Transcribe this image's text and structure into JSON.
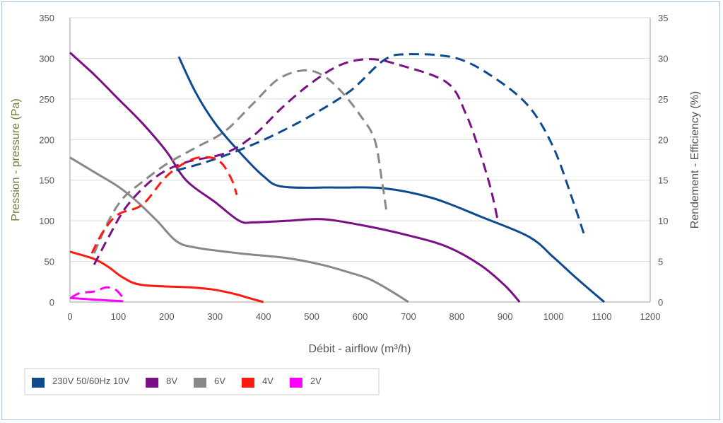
{
  "chart_data": {
    "type": "line",
    "xlabel": "Débit - airflow (m³/h)",
    "ylabel": "Pression - pressure (Pa)",
    "y2label": "Rendement - Efficiency (%)",
    "xlim": [
      0,
      1200
    ],
    "ylim": [
      0,
      350
    ],
    "y2lim": [
      0,
      35
    ],
    "x_ticks": [
      "0",
      "100",
      "200",
      "300",
      "400",
      "500",
      "600",
      "700",
      "800",
      "900",
      "1000",
      "1100",
      "1200"
    ],
    "y_ticks": [
      "0",
      "50",
      "100",
      "150",
      "200",
      "250",
      "300",
      "350"
    ],
    "y2_ticks": [
      "0",
      "5",
      "10",
      "15",
      "20",
      "25",
      "30",
      "35"
    ],
    "grid": true,
    "legend_position": "bottom-left",
    "series": [
      {
        "name": "230V 50/60Hz 10V",
        "color": "#0d4a8f",
        "pressure": [
          [
            225,
            302
          ],
          [
            260,
            258
          ],
          [
            300,
            220
          ],
          [
            350,
            185
          ],
          [
            400,
            155
          ],
          [
            440,
            142
          ],
          [
            550,
            141
          ],
          [
            650,
            140
          ],
          [
            750,
            128
          ],
          [
            850,
            105
          ],
          [
            950,
            80
          ],
          [
            1000,
            55
          ],
          [
            1050,
            28
          ],
          [
            1105,
            0
          ]
        ],
        "efficiency": [
          [
            220,
            16.2
          ],
          [
            280,
            17.2
          ],
          [
            350,
            18.7
          ],
          [
            420,
            20.5
          ],
          [
            500,
            23.0
          ],
          [
            580,
            26.0
          ],
          [
            650,
            29.8
          ],
          [
            700,
            30.5
          ],
          [
            800,
            30.0
          ],
          [
            880,
            27.5
          ],
          [
            950,
            24.0
          ],
          [
            1000,
            19.0
          ],
          [
            1040,
            12.5
          ],
          [
            1065,
            8.0
          ]
        ]
      },
      {
        "name": "8V",
        "color": "#7b0f86",
        "pressure": [
          [
            0,
            307
          ],
          [
            50,
            280
          ],
          [
            100,
            250
          ],
          [
            150,
            220
          ],
          [
            200,
            185
          ],
          [
            240,
            150
          ],
          [
            300,
            123
          ],
          [
            350,
            100
          ],
          [
            380,
            98
          ],
          [
            450,
            100
          ],
          [
            520,
            102
          ],
          [
            600,
            95
          ],
          [
            700,
            82
          ],
          [
            780,
            68
          ],
          [
            850,
            45
          ],
          [
            900,
            20
          ],
          [
            930,
            0
          ]
        ],
        "efficiency": [
          [
            50,
            4.6
          ],
          [
            80,
            8.0
          ],
          [
            120,
            12.0
          ],
          [
            180,
            15.5
          ],
          [
            240,
            17.2
          ],
          [
            320,
            18.3
          ],
          [
            380,
            20.5
          ],
          [
            440,
            24.0
          ],
          [
            500,
            27.0
          ],
          [
            560,
            29.2
          ],
          [
            620,
            29.9
          ],
          [
            680,
            29.2
          ],
          [
            780,
            27.0
          ],
          [
            820,
            23.0
          ],
          [
            850,
            18.0
          ],
          [
            870,
            14.0
          ],
          [
            885,
            10.0
          ]
        ]
      },
      {
        "name": "6V",
        "color": "#888888",
        "pressure": [
          [
            0,
            178
          ],
          [
            50,
            160
          ],
          [
            100,
            142
          ],
          [
            140,
            123
          ],
          [
            180,
            100
          ],
          [
            220,
            75
          ],
          [
            260,
            67
          ],
          [
            350,
            60
          ],
          [
            450,
            54
          ],
          [
            520,
            46
          ],
          [
            580,
            36
          ],
          [
            620,
            28
          ],
          [
            660,
            15
          ],
          [
            700,
            0
          ]
        ],
        "efficiency": [
          [
            50,
            6.0
          ],
          [
            80,
            10.0
          ],
          [
            110,
            12.8
          ],
          [
            150,
            14.8
          ],
          [
            200,
            17.0
          ],
          [
            260,
            19.0
          ],
          [
            320,
            21.0
          ],
          [
            380,
            24.5
          ],
          [
            430,
            27.4
          ],
          [
            480,
            28.5
          ],
          [
            520,
            28.0
          ],
          [
            560,
            26.0
          ],
          [
            600,
            23.0
          ],
          [
            630,
            20.0
          ],
          [
            645,
            15.0
          ],
          [
            655,
            11.0
          ]
        ]
      },
      {
        "name": "4V",
        "color": "#ff1a0f",
        "pressure": [
          [
            0,
            62
          ],
          [
            50,
            53
          ],
          [
            80,
            43
          ],
          [
            110,
            30
          ],
          [
            150,
            21
          ],
          [
            250,
            18
          ],
          [
            300,
            15
          ],
          [
            340,
            10
          ],
          [
            370,
            5
          ],
          [
            400,
            0
          ]
        ],
        "efficiency": [
          [
            45,
            6.0
          ],
          [
            70,
            8.8
          ],
          [
            100,
            10.8
          ],
          [
            150,
            12.0
          ],
          [
            200,
            15.5
          ],
          [
            250,
            17.5
          ],
          [
            290,
            17.8
          ],
          [
            315,
            17.0
          ],
          [
            335,
            15.0
          ],
          [
            345,
            13.2
          ]
        ]
      },
      {
        "name": "2V",
        "color": "#ff00ff",
        "pressure": [
          [
            0,
            5
          ],
          [
            25,
            4
          ],
          [
            50,
            3
          ],
          [
            80,
            2
          ],
          [
            110,
            1
          ]
        ],
        "efficiency": [
          [
            2,
            0.5
          ],
          [
            20,
            1.1
          ],
          [
            50,
            1.3
          ],
          [
            75,
            1.8
          ],
          [
            95,
            1.5
          ],
          [
            110,
            0.5
          ]
        ]
      }
    ]
  }
}
